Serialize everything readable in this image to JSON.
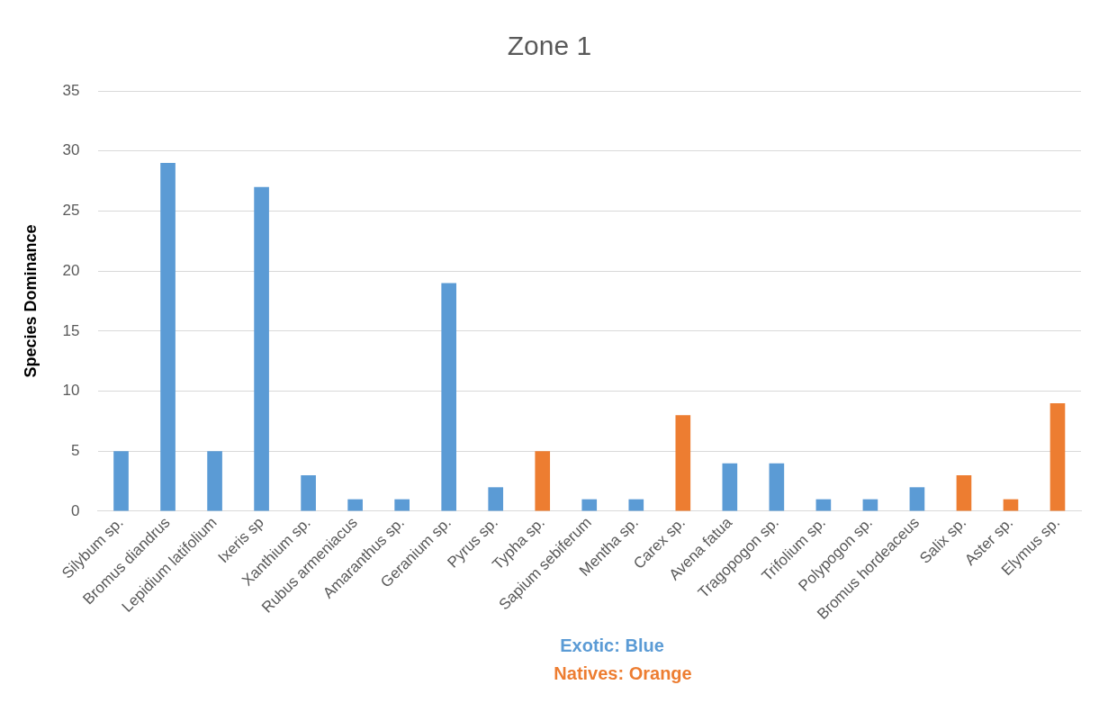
{
  "chart_data": {
    "type": "bar",
    "title": "Zone 1",
    "ylabel": "Species Dominance",
    "categories": [
      "Silybum sp.",
      "Bromus diandrus",
      "Lepidium latifolium",
      "Ixeris sp",
      "Xanthium sp.",
      "Rubus armeniacus",
      "Amaranthus sp.",
      "Geranium sp.",
      "Pyrus sp.",
      "Typha sp.",
      "Sapium sebiferum",
      "Mentha sp.",
      "Carex sp.",
      "Avena fatua",
      "Tragopogon sp.",
      "Trifolium sp.",
      "Polypogon sp.",
      "Bromus hordeaceus",
      "Salix sp.",
      "Aster sp.",
      "Elymus sp."
    ],
    "values": [
      5,
      29,
      5,
      27,
      3,
      1,
      1,
      19,
      2,
      5,
      1,
      1,
      8,
      4,
      4,
      1,
      1,
      2,
      3,
      1,
      9
    ],
    "colors": [
      "#5b9bd5",
      "#5b9bd5",
      "#5b9bd5",
      "#5b9bd5",
      "#5b9bd5",
      "#5b9bd5",
      "#5b9bd5",
      "#5b9bd5",
      "#5b9bd5",
      "#ed7d31",
      "#5b9bd5",
      "#5b9bd5",
      "#ed7d31",
      "#5b9bd5",
      "#5b9bd5",
      "#5b9bd5",
      "#5b9bd5",
      "#5b9bd5",
      "#ed7d31",
      "#ed7d31",
      "#ed7d31"
    ],
    "ylim": [
      0,
      35
    ],
    "yticks": [
      0,
      5,
      10,
      15,
      20,
      25,
      30,
      35
    ],
    "grid": "y",
    "legend": false,
    "annotations": [
      "Exotic: Blue",
      "Natives: Orange"
    ]
  }
}
